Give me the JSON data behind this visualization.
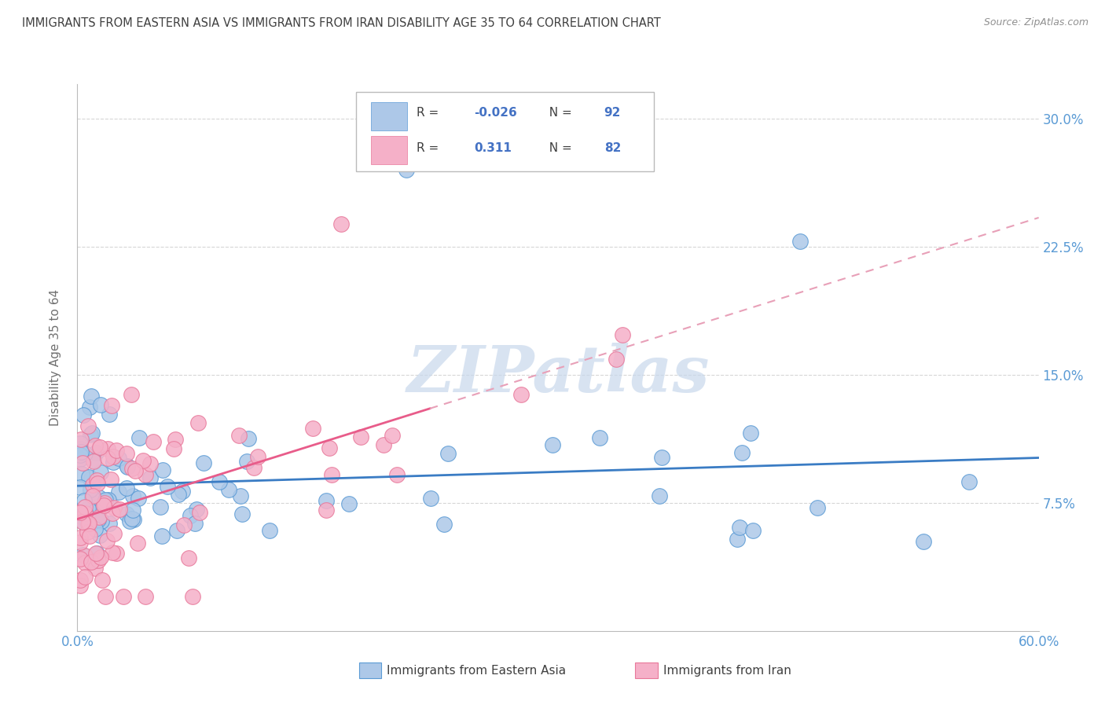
{
  "title": "IMMIGRANTS FROM EASTERN ASIA VS IMMIGRANTS FROM IRAN DISABILITY AGE 35 TO 64 CORRELATION CHART",
  "source": "Source: ZipAtlas.com",
  "ylabel": "Disability Age 35 to 64",
  "xmin": 0.0,
  "xmax": 0.6,
  "ymin": 0.0,
  "ymax": 0.32,
  "yticks": [
    0.075,
    0.15,
    0.225,
    0.3
  ],
  "ytick_labels": [
    "7.5%",
    "15.0%",
    "22.5%",
    "30.0%"
  ],
  "xtick_labels_bottom": [
    "0.0%",
    "",
    "",
    "",
    "",
    "",
    "60.0%"
  ],
  "legend_R_blue": "-0.026",
  "legend_N_blue": "92",
  "legend_R_pink": "0.311",
  "legend_N_pink": "82",
  "blue_color": "#adc8e8",
  "pink_color": "#f5b0c8",
  "blue_edge_color": "#5b9bd5",
  "pink_edge_color": "#e8789a",
  "blue_line_color": "#3a7cc4",
  "pink_line_color": "#e85c8a",
  "pink_line_dash_color": "#e8a0b8",
  "watermark_color": "#c8d8ec",
  "background_color": "#ffffff",
  "grid_color": "#cccccc",
  "title_color": "#404040",
  "tick_label_color": "#5b9bd5",
  "ylabel_color": "#707070",
  "source_color": "#909090",
  "legend_text_color": "#404040",
  "legend_value_color": "#4472c4",
  "bottom_label_color": "#404040"
}
